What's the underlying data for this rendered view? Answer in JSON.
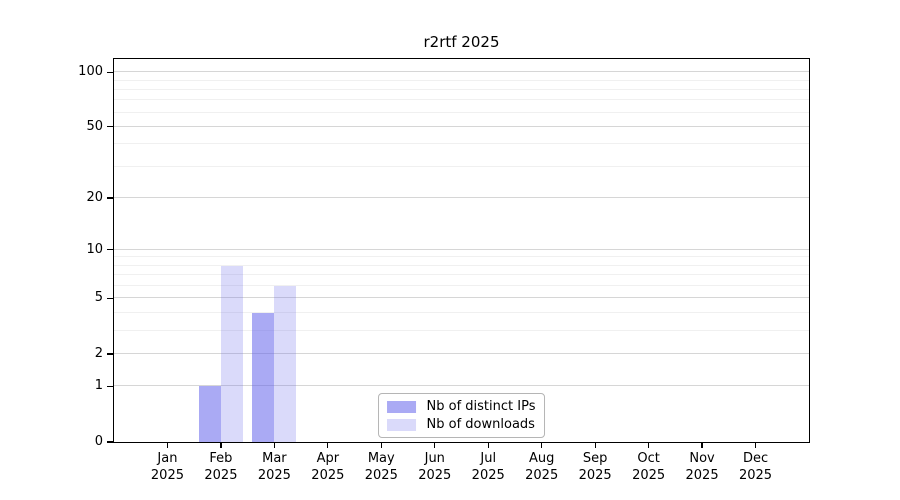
{
  "figure": {
    "background": "#ffffff"
  },
  "chart_data": {
    "type": "bar",
    "title": "r2rtf 2025",
    "categories": [
      "Jan",
      "Feb",
      "Mar",
      "Apr",
      "May",
      "Jun",
      "Jul",
      "Aug",
      "Sep",
      "Oct",
      "Nov",
      "Dec"
    ],
    "x_year_label": "2025",
    "series": [
      {
        "name": "Nb of distinct IPs",
        "color": "rgba(100,100,235,0.55)",
        "values": [
          0,
          1,
          4,
          0,
          0,
          0,
          0,
          0,
          0,
          0,
          0,
          0
        ]
      },
      {
        "name": "Nb of downloads",
        "color": "rgba(100,100,235,0.24)",
        "values": [
          0,
          8,
          6,
          0,
          0,
          0,
          0,
          0,
          0,
          0,
          0,
          0
        ]
      }
    ],
    "xlabel": "",
    "ylabel": "",
    "y_scale": "log1p",
    "ylim": [
      0,
      118
    ],
    "y_major_ticks": [
      0,
      1,
      2,
      5,
      10,
      20,
      50,
      100
    ],
    "y_minor_gridlines": [
      3,
      4,
      6,
      7,
      8,
      9,
      30,
      40,
      60,
      70,
      80,
      90
    ],
    "grid": "horizontal",
    "legend_position": "lower center"
  },
  "colors": {
    "text": "#000000",
    "axis": "#000000",
    "major_grid": "#d6d6d6",
    "minor_grid": "#f0f0f0",
    "legend_border": "#b5b5b5",
    "legend_bg": "#ffffff"
  }
}
